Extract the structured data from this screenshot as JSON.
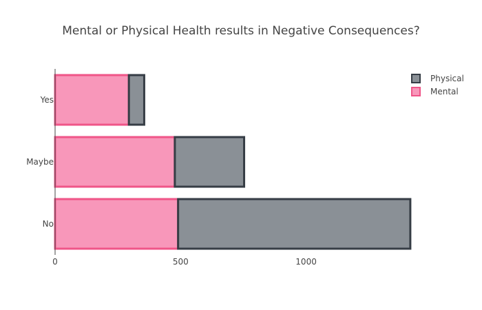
{
  "chart_data": {
    "type": "bar",
    "orientation": "horizontal",
    "barmode": "stack",
    "title": "Mental or Physical Health results in Negative Consequences?",
    "categories": [
      "No",
      "Maybe",
      "Yes"
    ],
    "series": [
      {
        "name": "Mental",
        "values": [
          490,
          477,
          294
        ],
        "fill": "#f897ba",
        "stroke": "#ef5588"
      },
      {
        "name": "Physical",
        "values": [
          925,
          276,
          61
        ],
        "fill": "#8a9096",
        "stroke": "#363d45"
      }
    ],
    "xlim": [
      0,
      1440
    ],
    "xticks": [
      0,
      500,
      1000
    ],
    "xtick_labels": [
      "0",
      "500",
      "1000"
    ],
    "grid": false,
    "legend": {
      "position": "top-right",
      "order": [
        "Physical",
        "Mental"
      ]
    }
  }
}
